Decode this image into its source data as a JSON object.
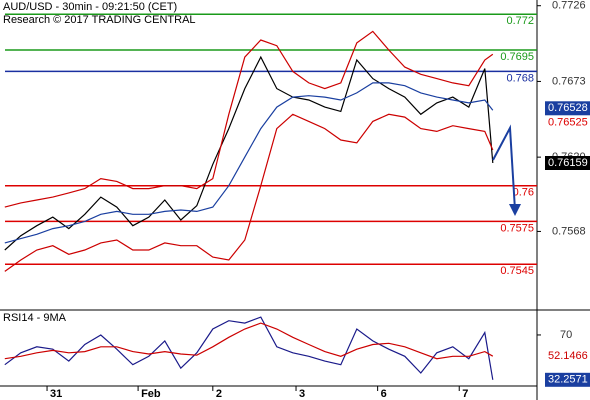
{
  "chart_data": [
    {
      "type": "price",
      "title": "AUD/USD - 30min - 09:21:50 (CET)",
      "subtitle": "Research © 2017 TRADING CENTRAL",
      "x": [
        0,
        1,
        2,
        3,
        4,
        5,
        6,
        7,
        8,
        9,
        10,
        11,
        12,
        13,
        14,
        15,
        16,
        17,
        18,
        19,
        20,
        21,
        22,
        23,
        24,
        25,
        26,
        27,
        28,
        29,
        30,
        30.5
      ],
      "xlim": [
        -0.3,
        33.26
      ],
      "xticks": [
        {
          "value": 2.64,
          "label": "31"
        },
        {
          "value": 8.33,
          "label": "Feb"
        },
        {
          "value": 13.0,
          "label": "2"
        },
        {
          "value": 18.2,
          "label": "3"
        },
        {
          "value": 23.3,
          "label": "6"
        },
        {
          "value": 28.4,
          "label": "7"
        }
      ],
      "ylim": [
        0.7513,
        0.773
      ],
      "yticks": [
        0.7726,
        0.7673,
        {
          "value": 0.762,
          "label": "0.7620"
        },
        0.7568
      ],
      "series": [
        {
          "color": "#000000",
          "values": [
            0.7555,
            0.7565,
            0.7572,
            0.7578,
            0.757,
            0.758,
            0.7592,
            0.7585,
            0.7572,
            0.7578,
            0.759,
            0.7576,
            0.7586,
            0.7615,
            0.764,
            0.7668,
            0.769,
            0.7668,
            0.7662,
            0.766,
            0.7655,
            0.7652,
            0.7688,
            0.7675,
            0.7668,
            0.7662,
            0.765,
            0.7658,
            0.7662,
            0.7655,
            0.7682,
            0.76159
          ]
        },
        {
          "color": "#cc0000",
          "values": [
            0.7585,
            0.7588,
            0.759,
            0.7592,
            0.7595,
            0.7598,
            0.7605,
            0.7603,
            0.7598,
            0.7598,
            0.76,
            0.76,
            0.7598,
            0.7605,
            0.765,
            0.769,
            0.7702,
            0.7698,
            0.768,
            0.7672,
            0.7668,
            0.7672,
            0.77,
            0.7708,
            0.7695,
            0.7683,
            0.7678,
            0.7675,
            0.7672,
            0.767,
            0.7688,
            0.7692
          ]
        },
        {
          "color": "#cc0000",
          "values": [
            0.754,
            0.7548,
            0.7555,
            0.7558,
            0.7552,
            0.7555,
            0.756,
            0.7562,
            0.7555,
            0.7555,
            0.756,
            0.7558,
            0.7558,
            0.755,
            0.7548,
            0.7562,
            0.76,
            0.764,
            0.765,
            0.7645,
            0.764,
            0.7632,
            0.763,
            0.7645,
            0.765,
            0.7648,
            0.764,
            0.7638,
            0.7642,
            0.764,
            0.7638,
            0.7625
          ]
        },
        {
          "color": "#1a3fa0",
          "values": [
            0.756,
            0.7563,
            0.7566,
            0.757,
            0.7572,
            0.7575,
            0.758,
            0.7582,
            0.758,
            0.758,
            0.7582,
            0.7583,
            0.7582,
            0.7585,
            0.76,
            0.762,
            0.764,
            0.7655,
            0.7662,
            0.7663,
            0.7662,
            0.766,
            0.7665,
            0.7672,
            0.7672,
            0.767,
            0.7665,
            0.7662,
            0.766,
            0.7658,
            0.766,
            0.76528
          ]
        }
      ],
      "levels": {
        "values": [
          0.772,
          0.7695,
          0.768,
          0.76,
          0.7575,
          0.7545
        ],
        "colors": [
          "#1a9a1a",
          "#1a9a1a",
          "#1a2fa0",
          "#dd0000",
          "#dd0000",
          "#dd0000"
        ]
      },
      "price_labels": {
        "values": [
          0.76528,
          0.76525
        ],
        "colors": [
          "#1a3fa0",
          "#dd0000"
        ]
      }
    },
    {
      "type": "rsi",
      "title": "RSI14 - 9MA",
      "ylim": [
        22,
        91
      ],
      "yticks": [
        70
      ],
      "series": [
        {
          "color": "#1a1a8a",
          "values": [
            45,
            55,
            60,
            58,
            48,
            62,
            70,
            58,
            45,
            52,
            65,
            42,
            55,
            75,
            82,
            80,
            85,
            60,
            55,
            52,
            48,
            45,
            75,
            65,
            58,
            52,
            38,
            55,
            60,
            50,
            72,
            32.2571
          ]
        },
        {
          "color": "#cc0000",
          "values": [
            50,
            52,
            55,
            57,
            55,
            56,
            60,
            60,
            56,
            54,
            56,
            54,
            53,
            60,
            68,
            75,
            80,
            75,
            68,
            62,
            56,
            52,
            58,
            62,
            63,
            60,
            55,
            50,
            52,
            52,
            56,
            52.1466
          ]
        }
      ]
    }
  ]
}
